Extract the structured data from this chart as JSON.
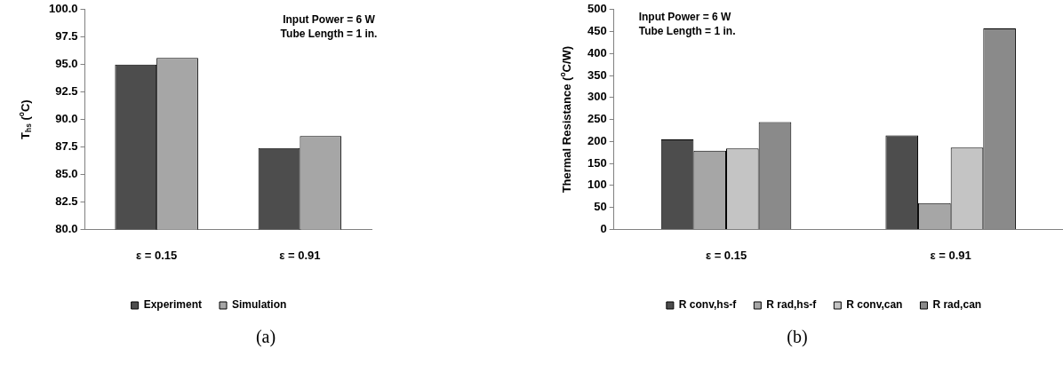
{
  "chart_data": [
    {
      "type": "bar",
      "ylabel": "T$_{hs}$ ($^{o}$C)",
      "categories": [
        "ε = 0.15",
        "ε = 0.91"
      ],
      "series": [
        {
          "name": "Experiment",
          "color": "#4d4d4d",
          "values": [
            95.0,
            87.4
          ]
        },
        {
          "name": "Simulation",
          "color": "#a6a6a6",
          "values": [
            95.6,
            88.5
          ]
        }
      ],
      "ylim": [
        80,
        100
      ],
      "yticks": [
        {
          "value": 80,
          "label": "80.0"
        },
        {
          "value": 82.5,
          "label": "82.5"
        },
        {
          "value": 85,
          "label": "85.0"
        },
        {
          "value": 87.5,
          "label": "87.5"
        },
        {
          "value": 90,
          "label": "90.0"
        },
        {
          "value": 92.5,
          "label": "92.5"
        },
        {
          "value": 95,
          "label": "95.0"
        },
        {
          "value": 97.5,
          "label": "97.5"
        },
        {
          "value": 100,
          "label": "100.0"
        }
      ],
      "grid": false,
      "legend": "bottom",
      "annotations": [
        "Input Power = 6 W",
        "Tube Length = 1 in.",
        "(a)"
      ]
    },
    {
      "type": "bar",
      "ylabel": "Thermal Resistance ($^{o}$C/W)",
      "categories": [
        "ε = 0.15",
        "ε = 0.91"
      ],
      "series": [
        {
          "name": "R conv,hs-f",
          "color": "#4d4d4d",
          "values": [
            205,
            214
          ]
        },
        {
          "name": "R rad,hs-f",
          "color": "#a6a6a6",
          "values": [
            179,
            60
          ]
        },
        {
          "name": "R conv,can",
          "color": "#c4c4c4",
          "values": [
            184,
            186
          ]
        },
        {
          "name": "R rad,can",
          "color": "#8a8a8a",
          "values": [
            244,
            457
          ]
        }
      ],
      "ylim": [
        0,
        500
      ],
      "yticks": [
        0,
        50,
        100,
        150,
        200,
        250,
        300,
        350,
        400,
        450,
        500
      ],
      "grid": false,
      "legend": "bottom",
      "annotations": [
        "Input Power = 6 W",
        "Tube Length = 1 in.",
        "(b)"
      ]
    }
  ]
}
